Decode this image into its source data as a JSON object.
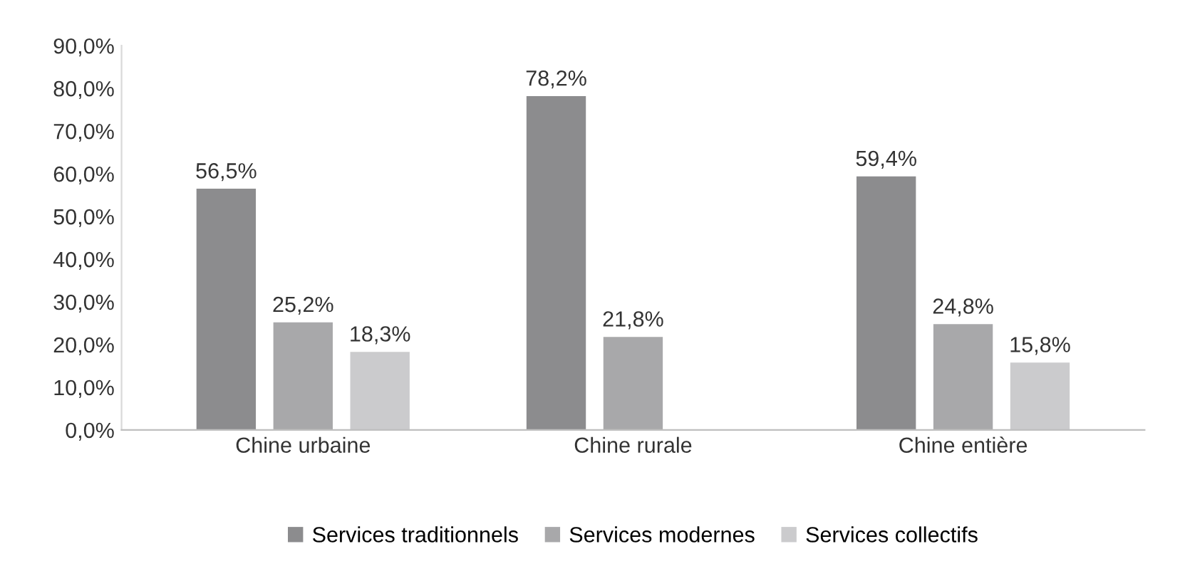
{
  "chart_data": {
    "type": "bar",
    "categories": [
      "Chine urbaine",
      "Chine rurale",
      "Chine entière"
    ],
    "series": [
      {
        "name": "Services traditionnels",
        "color": "#8c8c8e",
        "values": [
          56.5,
          78.2,
          59.4
        ],
        "value_labels": [
          "56,5%",
          "78,2%",
          "59,4%"
        ]
      },
      {
        "name": "Services modernes",
        "color": "#a8a8aa",
        "values": [
          25.2,
          21.8,
          24.8
        ],
        "value_labels": [
          "25,2%",
          "21,8%",
          "24,8%"
        ]
      },
      {
        "name": "Services collectifs",
        "color": "#cbcbcd",
        "values": [
          18.3,
          null,
          15.8
        ],
        "value_labels": [
          "18,3%",
          null,
          "15,8%"
        ]
      }
    ],
    "ylim": [
      0,
      90
    ],
    "yticks": [
      {
        "value": 0,
        "label": "0,0%"
      },
      {
        "value": 10,
        "label": "10,0%"
      },
      {
        "value": 20,
        "label": "20,0%"
      },
      {
        "value": 30,
        "label": "30,0%"
      },
      {
        "value": 40,
        "label": "40,0%"
      },
      {
        "value": 50,
        "label": "50,0%"
      },
      {
        "value": 60,
        "label": "60,0%"
      },
      {
        "value": 70,
        "label": "70,0%"
      },
      {
        "value": 80,
        "label": "80,0%"
      },
      {
        "value": 90,
        "label": "90,0%"
      }
    ],
    "grid": false,
    "legend": "bottom"
  }
}
